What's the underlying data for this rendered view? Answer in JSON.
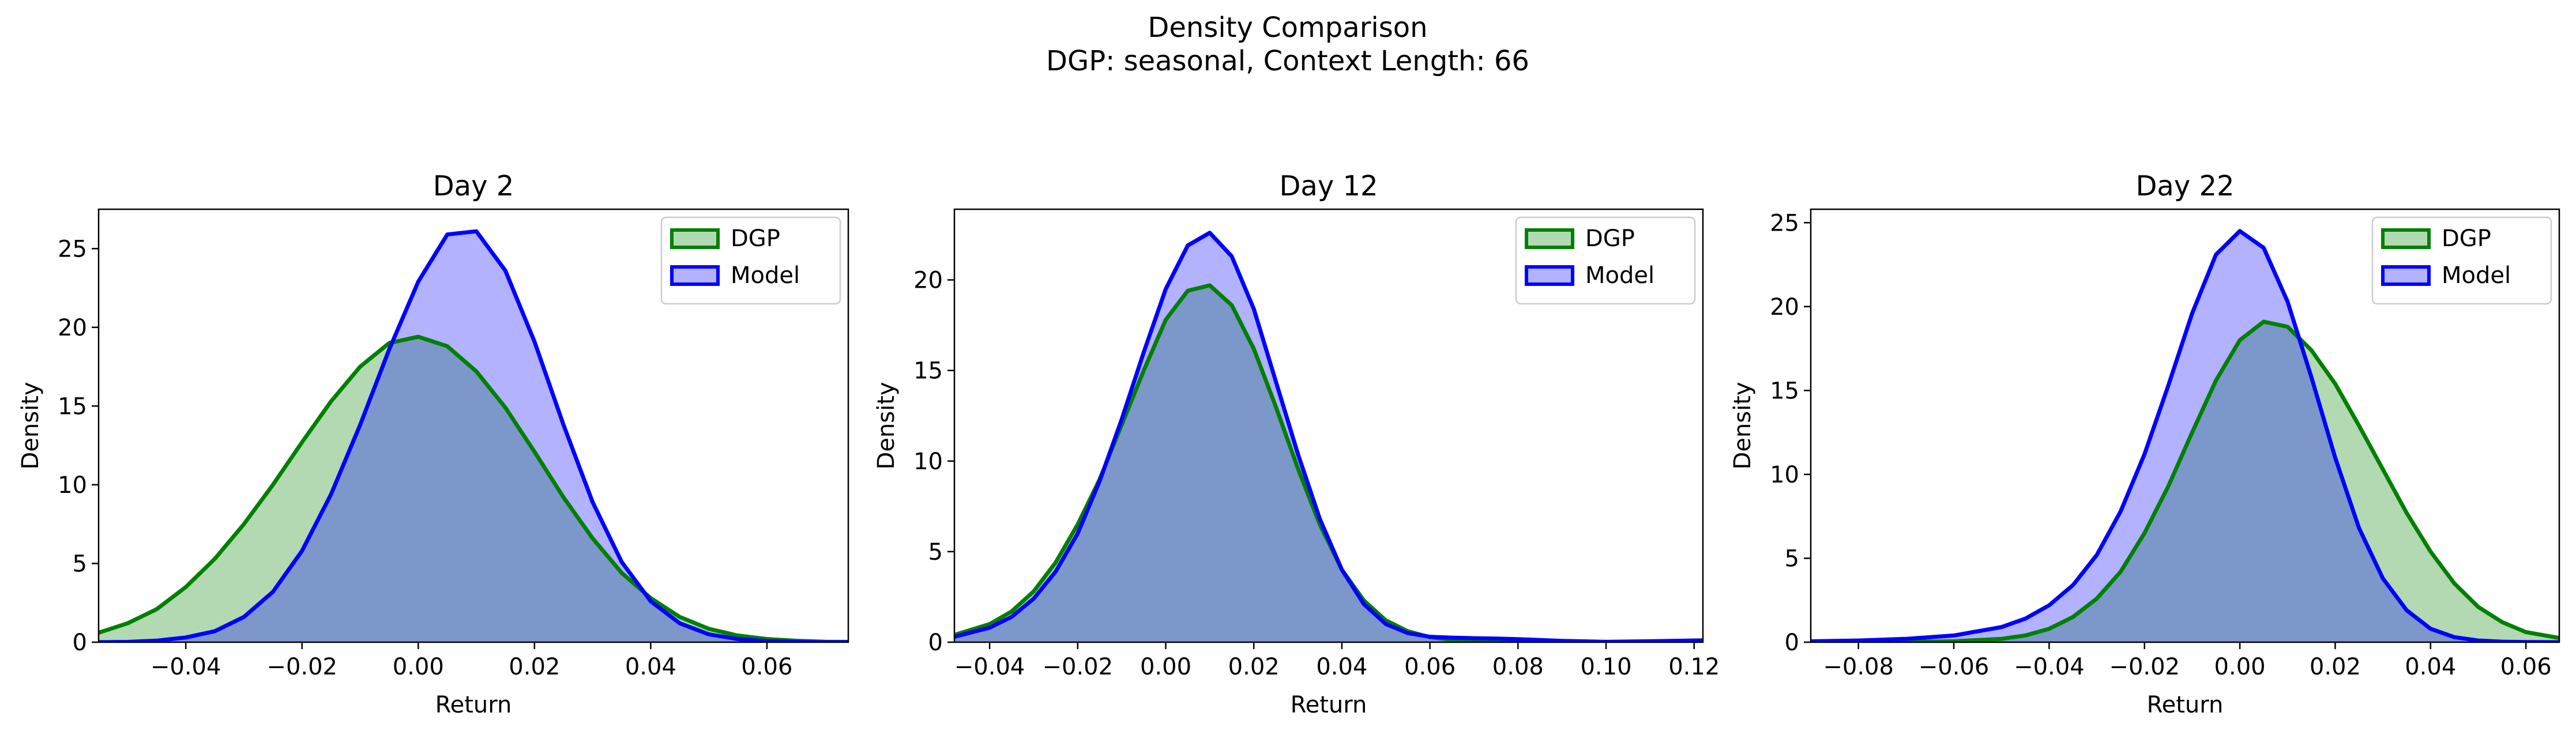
{
  "figure": {
    "suptitle_line1": "Density Comparison",
    "suptitle_line2": "DGP: seasonal, Context Length: 66"
  },
  "colors": {
    "dgp_line": "#008000",
    "dgp_fill": "#b2dab2",
    "model_line": "#0000ff",
    "model_fill": "#b2b2ff",
    "overlap_fill": "#7f98c8"
  },
  "legend": {
    "dgp_label": "DGP",
    "model_label": "Model",
    "placement": "top-right"
  },
  "chart_data": [
    {
      "type": "area",
      "title": "Day 2",
      "xlabel": "Return",
      "ylabel": "Density",
      "xlim": [
        -0.055,
        0.074
      ],
      "ylim": [
        0,
        27.5
      ],
      "xticks": [
        -0.04,
        -0.02,
        0.0,
        0.02,
        0.04,
        0.06
      ],
      "xtick_labels": [
        "−0.04",
        "−0.02",
        "0.00",
        "0.02",
        "0.04",
        "0.06"
      ],
      "yticks": [
        0,
        5,
        10,
        15,
        20,
        25
      ],
      "ytick_labels": [
        "0",
        "5",
        "10",
        "15",
        "20",
        "25"
      ],
      "grid": false,
      "x": [
        -0.055,
        -0.05,
        -0.045,
        -0.04,
        -0.035,
        -0.03,
        -0.025,
        -0.02,
        -0.015,
        -0.01,
        -0.005,
        0.0,
        0.005,
        0.01,
        0.015,
        0.02,
        0.025,
        0.03,
        0.035,
        0.04,
        0.045,
        0.05,
        0.055,
        0.06,
        0.065,
        0.07,
        0.074
      ],
      "series": [
        {
          "name": "DGP",
          "values": [
            0.6,
            1.2,
            2.1,
            3.5,
            5.3,
            7.5,
            10.0,
            12.7,
            15.3,
            17.5,
            19.0,
            19.4,
            18.8,
            17.2,
            14.9,
            12.1,
            9.2,
            6.6,
            4.4,
            2.8,
            1.6,
            0.85,
            0.42,
            0.2,
            0.09,
            0.03,
            0.02
          ]
        },
        {
          "name": "Model",
          "values": [
            0.0,
            0.02,
            0.1,
            0.3,
            0.7,
            1.6,
            3.2,
            5.8,
            9.4,
            13.8,
            18.6,
            22.9,
            25.9,
            26.1,
            23.6,
            19.1,
            13.8,
            8.9,
            5.1,
            2.6,
            1.2,
            0.5,
            0.2,
            0.07,
            0.02,
            0.0,
            0.0
          ]
        }
      ]
    },
    {
      "type": "area",
      "title": "Day 12",
      "xlabel": "Return",
      "ylabel": "Density",
      "xlim": [
        -0.048,
        0.122
      ],
      "ylim": [
        0,
        23.9
      ],
      "xticks": [
        -0.04,
        -0.02,
        0.0,
        0.02,
        0.04,
        0.06,
        0.08,
        0.1,
        0.12
      ],
      "xtick_labels": [
        "−0.04",
        "−0.02",
        "0.00",
        "0.02",
        "0.04",
        "0.06",
        "0.08",
        "0.10",
        "0.12"
      ],
      "yticks": [
        0,
        5,
        10,
        15,
        20
      ],
      "ytick_labels": [
        "0",
        "5",
        "10",
        "15",
        "20"
      ],
      "grid": false,
      "x": [
        -0.048,
        -0.04,
        -0.035,
        -0.03,
        -0.025,
        -0.02,
        -0.015,
        -0.01,
        -0.005,
        0.0,
        0.005,
        0.01,
        0.015,
        0.02,
        0.025,
        0.03,
        0.035,
        0.04,
        0.045,
        0.05,
        0.055,
        0.06,
        0.065,
        0.07,
        0.075,
        0.08,
        0.085,
        0.09,
        0.1,
        0.11,
        0.122
      ],
      "series": [
        {
          "name": "DGP",
          "values": [
            0.4,
            1.0,
            1.7,
            2.8,
            4.4,
            6.5,
            9.0,
            12.0,
            15.0,
            17.8,
            19.4,
            19.7,
            18.6,
            16.2,
            13.0,
            9.6,
            6.5,
            4.0,
            2.3,
            1.2,
            0.6,
            0.28,
            0.13,
            0.07,
            0.05,
            0.05,
            0.04,
            0.03,
            0.01,
            0.0,
            0.0
          ]
        },
        {
          "name": "Model",
          "values": [
            0.3,
            0.8,
            1.4,
            2.4,
            3.9,
            6.0,
            8.9,
            12.3,
            16.0,
            19.5,
            21.9,
            22.6,
            21.3,
            18.4,
            14.4,
            10.4,
            6.8,
            4.0,
            2.1,
            1.0,
            0.5,
            0.3,
            0.25,
            0.22,
            0.2,
            0.17,
            0.12,
            0.07,
            0.02,
            0.05,
            0.1
          ]
        }
      ]
    },
    {
      "type": "area",
      "title": "Day 22",
      "xlabel": "Return",
      "ylabel": "Density",
      "xlim": [
        -0.09,
        0.067
      ],
      "ylim": [
        0,
        25.8
      ],
      "xticks": [
        -0.08,
        -0.06,
        -0.04,
        -0.02,
        0.0,
        0.02,
        0.04,
        0.06
      ],
      "xtick_labels": [
        "−0.08",
        "−0.06",
        "−0.04",
        "−0.02",
        "0.00",
        "0.02",
        "0.04",
        "0.06"
      ],
      "yticks": [
        0,
        5,
        10,
        15,
        20,
        25
      ],
      "ytick_labels": [
        "0",
        "5",
        "10",
        "15",
        "20",
        "25"
      ],
      "grid": false,
      "x": [
        -0.09,
        -0.08,
        -0.07,
        -0.06,
        -0.05,
        -0.045,
        -0.04,
        -0.035,
        -0.03,
        -0.025,
        -0.02,
        -0.015,
        -0.01,
        -0.005,
        0.0,
        0.005,
        0.01,
        0.015,
        0.02,
        0.025,
        0.03,
        0.035,
        0.04,
        0.045,
        0.05,
        0.055,
        0.06,
        0.067
      ],
      "series": [
        {
          "name": "DGP",
          "values": [
            0.0,
            0.0,
            0.02,
            0.05,
            0.2,
            0.4,
            0.8,
            1.5,
            2.6,
            4.2,
            6.5,
            9.3,
            12.5,
            15.6,
            18.0,
            19.1,
            18.8,
            17.4,
            15.4,
            12.9,
            10.3,
            7.7,
            5.4,
            3.5,
            2.1,
            1.2,
            0.6,
            0.25
          ]
        },
        {
          "name": "Model",
          "values": [
            0.05,
            0.1,
            0.2,
            0.4,
            0.9,
            1.4,
            2.2,
            3.4,
            5.2,
            7.8,
            11.2,
            15.3,
            19.6,
            23.1,
            24.5,
            23.5,
            20.3,
            15.8,
            11.0,
            6.8,
            3.8,
            1.9,
            0.8,
            0.3,
            0.1,
            0.03,
            0.01,
            0.0
          ]
        }
      ]
    }
  ]
}
